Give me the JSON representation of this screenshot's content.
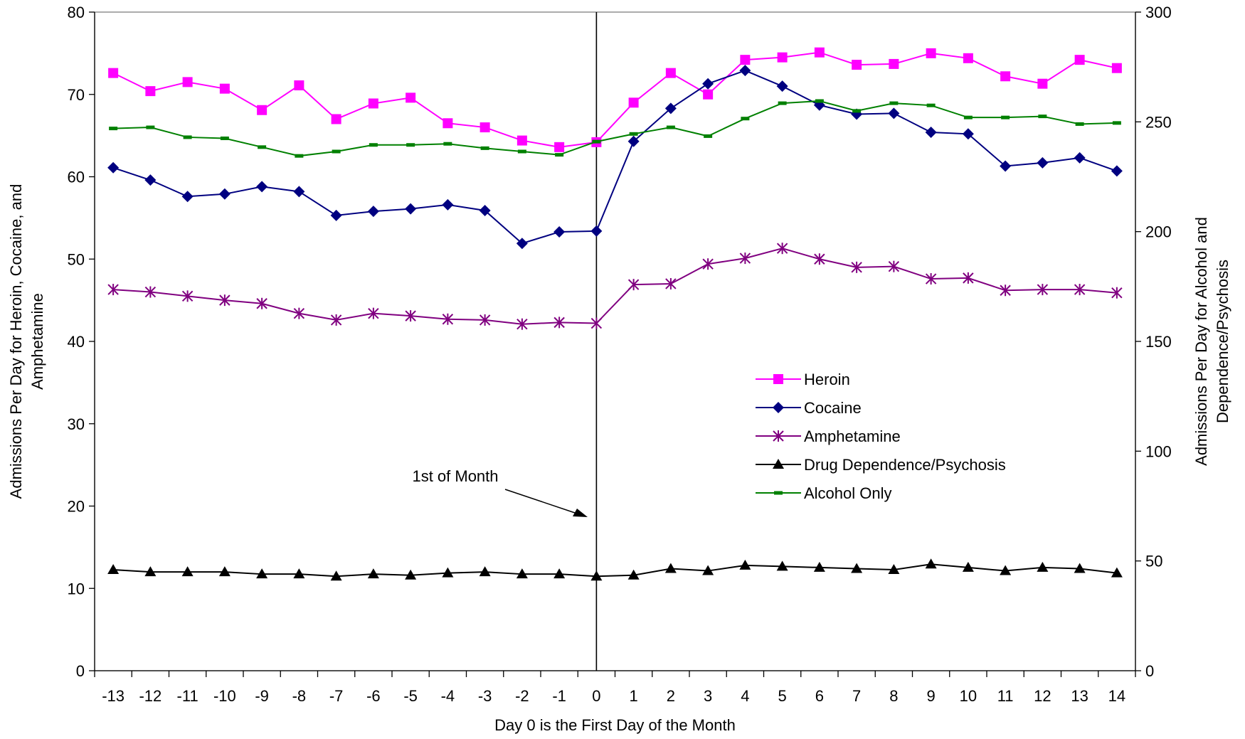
{
  "chart_data": {
    "type": "line",
    "x_title": "Day 0 is the First Day of the Month",
    "y_left_title_lines": [
      "Admissions Per Day for Heroin, Cocaine, and",
      "Amphetamine"
    ],
    "y_right_title_lines": [
      "Admissions Per Day for Alcohol and",
      "Dependence/Psychosis"
    ],
    "x": [
      -13,
      -12,
      -11,
      -10,
      -9,
      -8,
      -7,
      -6,
      -5,
      -4,
      -3,
      -2,
      -1,
      0,
      1,
      2,
      3,
      4,
      5,
      6,
      7,
      8,
      9,
      10,
      11,
      12,
      13,
      14
    ],
    "x_tick_labels": [
      "-13",
      "-12",
      "-11",
      "-10",
      "-9",
      "-8",
      "-7",
      "-6",
      "-5",
      "-4",
      "-3",
      "-2",
      "-1",
      "0",
      "1",
      "2",
      "3",
      "4",
      "5",
      "6",
      "7",
      "8",
      "9",
      "10",
      "11",
      "12",
      "13",
      "14"
    ],
    "y_left": {
      "min": 0,
      "max": 80,
      "ticks": [
        0,
        10,
        20,
        30,
        40,
        50,
        60,
        70,
        80
      ]
    },
    "y_right": {
      "min": 0,
      "max": 300,
      "ticks": [
        0,
        50,
        100,
        150,
        200,
        250,
        300
      ]
    },
    "series": [
      {
        "name": "Heroin",
        "axis": "left",
        "color": "#ff00ff",
        "marker": "square",
        "values": [
          72.6,
          70.4,
          71.5,
          70.7,
          68.1,
          71.1,
          67.0,
          68.9,
          69.6,
          66.5,
          66.0,
          64.4,
          63.6,
          64.2,
          69.0,
          72.6,
          70.0,
          74.2,
          74.5,
          75.1,
          73.6,
          73.7,
          75.0,
          74.4,
          72.2,
          71.3,
          74.2,
          73.2
        ]
      },
      {
        "name": "Cocaine",
        "axis": "left",
        "color": "#000080",
        "marker": "diamond",
        "values": [
          61.1,
          59.6,
          57.6,
          57.9,
          58.8,
          58.2,
          55.3,
          55.8,
          56.1,
          56.6,
          55.9,
          51.9,
          53.3,
          53.4,
          64.3,
          68.3,
          71.3,
          72.9,
          71.0,
          68.7,
          67.6,
          67.7,
          65.4,
          65.2,
          61.3,
          61.7,
          62.3,
          60.7
        ]
      },
      {
        "name": "Amphetamine",
        "axis": "left",
        "color": "#800080",
        "marker": "asterisk",
        "values": [
          46.3,
          46.0,
          45.5,
          45.0,
          44.6,
          43.4,
          42.6,
          43.4,
          43.1,
          42.7,
          42.6,
          42.1,
          42.3,
          42.2,
          46.9,
          47.0,
          49.4,
          50.1,
          51.3,
          50.0,
          49.0,
          49.1,
          47.6,
          47.7,
          46.2,
          46.3,
          46.3,
          45.9
        ]
      },
      {
        "name": "Drug Dependence/Psychosis",
        "axis": "right",
        "color": "#000000",
        "marker": "triangle",
        "values": [
          46,
          45,
          45,
          45,
          44,
          44,
          43,
          44,
          43.5,
          44.5,
          45,
          44,
          44,
          43,
          43.5,
          46.5,
          45.5,
          48,
          47.5,
          47,
          46.5,
          46,
          48.5,
          47,
          45.5,
          47,
          46.5,
          44.5
        ]
      },
      {
        "name": "Alcohol Only",
        "axis": "right",
        "color": "#008000",
        "marker": "dash",
        "values": [
          247,
          247.5,
          243,
          242.5,
          238.5,
          234.5,
          236.5,
          239.5,
          239.5,
          240,
          238,
          236.5,
          235,
          241,
          244.5,
          247.5,
          243.5,
          251.5,
          258.5,
          259.5,
          255,
          258.5,
          257.5,
          252,
          252,
          252.5,
          249,
          249.5
        ]
      }
    ],
    "reference_line": {
      "x": 0
    },
    "annotation": {
      "text": "1st of Month"
    },
    "legend": {
      "position": "right-center"
    },
    "grid": false
  }
}
